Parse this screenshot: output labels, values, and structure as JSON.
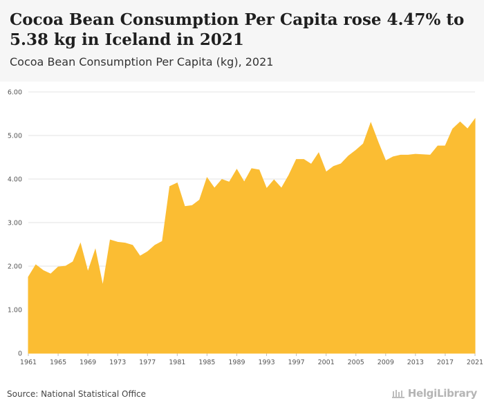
{
  "header": {
    "title": "Cocoa Bean Consumption Per Capita rose 4.47% to 5.38 kg in Iceland in 2021",
    "subtitle": "Cocoa Bean Consumption Per Capita (kg), 2021"
  },
  "footer": {
    "source": "Source: National Statistical Office",
    "brand": "HelgiLibrary"
  },
  "colors": {
    "area_fill": "#fbbd33",
    "grid": "#e3e3e3",
    "axis_text": "#555555"
  },
  "chart_data": {
    "type": "area",
    "title": "Cocoa Bean Consumption Per Capita (kg), 2021",
    "xlabel": "",
    "ylabel": "",
    "ylim": [
      0,
      6
    ],
    "yticks": [
      "0",
      "1.00",
      "2.00",
      "3.00",
      "4.00",
      "5.00",
      "6.00"
    ],
    "ytick_values": [
      0,
      1,
      2,
      3,
      4,
      5,
      6
    ],
    "xticks": [
      "1961",
      "1965",
      "1969",
      "1973",
      "1977",
      "1981",
      "1985",
      "1989",
      "1993",
      "1997",
      "2001",
      "2005",
      "2009",
      "2013",
      "2017",
      "2021"
    ],
    "x": [
      1961,
      1962,
      1963,
      1964,
      1965,
      1966,
      1967,
      1968,
      1969,
      1970,
      1971,
      1972,
      1973,
      1974,
      1975,
      1976,
      1977,
      1978,
      1979,
      1980,
      1981,
      1982,
      1983,
      1984,
      1985,
      1986,
      1987,
      1988,
      1989,
      1990,
      1991,
      1992,
      1993,
      1994,
      1995,
      1996,
      1997,
      1998,
      1999,
      2000,
      2001,
      2002,
      2003,
      2004,
      2005,
      2006,
      2007,
      2008,
      2009,
      2010,
      2011,
      2012,
      2013,
      2014,
      2015,
      2016,
      2017,
      2018,
      2019,
      2020,
      2021
    ],
    "series": [
      {
        "name": "Cocoa Bean Consumption Per Capita (kg)",
        "values": [
          1.75,
          2.03,
          1.9,
          1.82,
          1.98,
          2.0,
          2.1,
          2.52,
          1.87,
          2.38,
          1.55,
          2.6,
          2.55,
          2.53,
          2.48,
          2.23,
          2.33,
          2.48,
          2.57,
          3.83,
          3.91,
          3.37,
          3.39,
          3.52,
          4.03,
          3.79,
          3.99,
          3.93,
          4.22,
          3.93,
          4.24,
          4.21,
          3.78,
          3.98,
          3.79,
          4.09,
          4.45,
          4.45,
          4.34,
          4.6,
          4.16,
          4.29,
          4.35,
          4.53,
          4.66,
          4.81,
          5.29,
          4.84,
          4.42,
          4.51,
          4.55,
          4.55,
          4.57,
          4.56,
          4.55,
          4.76,
          4.76,
          5.15,
          5.31,
          5.15,
          5.38
        ]
      }
    ]
  }
}
